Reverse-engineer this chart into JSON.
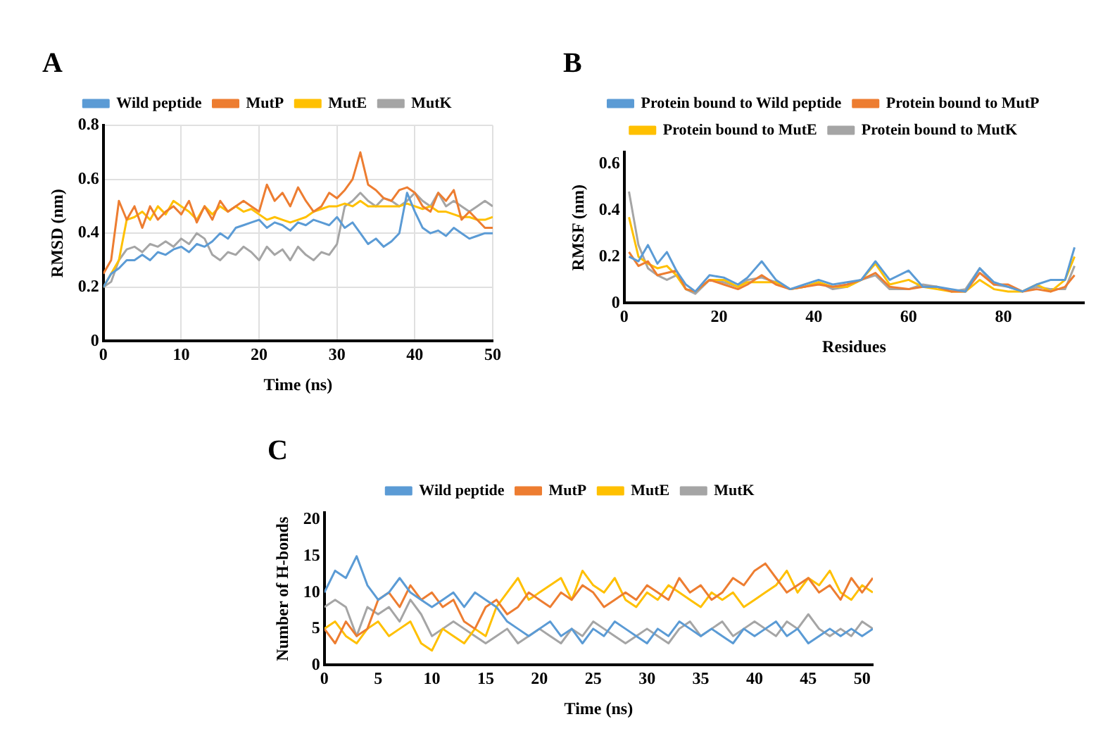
{
  "chart_data": [
    {
      "type": "line",
      "title": "A",
      "xlabel": "Time (ns)",
      "ylabel": "RMSD (nm)",
      "grid": true,
      "legend": "top",
      "marker": "none",
      "x": [
        0,
        1,
        2,
        3,
        4,
        5,
        6,
        7,
        8,
        9,
        10,
        11,
        12,
        13,
        14,
        15,
        16,
        17,
        18,
        19,
        20,
        21,
        22,
        23,
        24,
        25,
        26,
        27,
        28,
        29,
        30,
        31,
        32,
        33,
        34,
        35,
        36,
        37,
        38,
        39,
        40,
        41,
        42,
        43,
        44,
        45,
        46,
        47,
        48,
        49,
        50
      ],
      "xlim": [
        0,
        50
      ],
      "xticks": [
        0,
        10,
        20,
        30,
        40,
        50
      ],
      "ylim": [
        0,
        0.8
      ],
      "yticks": [
        0,
        0.2,
        0.4,
        0.6,
        0.8
      ],
      "series": [
        {
          "name": "Wild peptide",
          "color": "#5b9bd5",
          "values": [
            0.2,
            0.25,
            0.27,
            0.3,
            0.3,
            0.32,
            0.3,
            0.33,
            0.32,
            0.34,
            0.35,
            0.33,
            0.36,
            0.35,
            0.37,
            0.4,
            0.38,
            0.42,
            0.43,
            0.44,
            0.45,
            0.42,
            0.44,
            0.43,
            0.41,
            0.44,
            0.43,
            0.45,
            0.44,
            0.43,
            0.46,
            0.42,
            0.44,
            0.4,
            0.36,
            0.38,
            0.35,
            0.37,
            0.4,
            0.55,
            0.48,
            0.42,
            0.4,
            0.41,
            0.39,
            0.42,
            0.4,
            0.38,
            0.39,
            0.4,
            0.4
          ]
        },
        {
          "name": "MutP",
          "color": "#ed7d31",
          "values": [
            0.25,
            0.3,
            0.52,
            0.45,
            0.5,
            0.42,
            0.5,
            0.45,
            0.48,
            0.5,
            0.47,
            0.52,
            0.44,
            0.5,
            0.45,
            0.52,
            0.48,
            0.5,
            0.52,
            0.5,
            0.48,
            0.58,
            0.52,
            0.55,
            0.5,
            0.57,
            0.52,
            0.48,
            0.5,
            0.55,
            0.53,
            0.56,
            0.6,
            0.7,
            0.58,
            0.56,
            0.53,
            0.52,
            0.56,
            0.57,
            0.55,
            0.5,
            0.48,
            0.55,
            0.52,
            0.56,
            0.45,
            0.48,
            0.45,
            0.42,
            0.42
          ]
        },
        {
          "name": "MutE",
          "color": "#ffc000",
          "values": [
            0.2,
            0.25,
            0.3,
            0.45,
            0.46,
            0.48,
            0.45,
            0.5,
            0.47,
            0.52,
            0.5,
            0.48,
            0.45,
            0.5,
            0.47,
            0.5,
            0.48,
            0.5,
            0.48,
            0.49,
            0.47,
            0.45,
            0.46,
            0.45,
            0.44,
            0.45,
            0.46,
            0.48,
            0.49,
            0.5,
            0.5,
            0.51,
            0.5,
            0.52,
            0.5,
            0.5,
            0.5,
            0.5,
            0.5,
            0.51,
            0.5,
            0.49,
            0.5,
            0.48,
            0.48,
            0.47,
            0.46,
            0.46,
            0.45,
            0.45,
            0.46
          ]
        },
        {
          "name": "MutK",
          "color": "#a5a5a5",
          "values": [
            0.2,
            0.22,
            0.3,
            0.34,
            0.35,
            0.33,
            0.36,
            0.35,
            0.37,
            0.35,
            0.38,
            0.36,
            0.4,
            0.38,
            0.32,
            0.3,
            0.33,
            0.32,
            0.35,
            0.33,
            0.3,
            0.35,
            0.32,
            0.34,
            0.3,
            0.35,
            0.32,
            0.3,
            0.33,
            0.32,
            0.36,
            0.5,
            0.52,
            0.55,
            0.52,
            0.5,
            0.53,
            0.52,
            0.5,
            0.52,
            0.55,
            0.52,
            0.5,
            0.55,
            0.5,
            0.52,
            0.5,
            0.48,
            0.5,
            0.52,
            0.5
          ]
        }
      ]
    },
    {
      "type": "line",
      "title": "B",
      "xlabel": "Residues",
      "ylabel": "RMSF (nm)",
      "grid": false,
      "legend": "top",
      "marker": "none",
      "x": [
        1,
        3,
        5,
        7,
        9,
        11,
        13,
        15,
        18,
        21,
        24,
        26,
        29,
        32,
        35,
        38,
        41,
        44,
        47,
        50,
        53,
        56,
        60,
        63,
        66,
        69,
        72,
        75,
        78,
        81,
        84,
        87,
        90,
        93,
        95
      ],
      "xlim": [
        0,
        97
      ],
      "xticks": [
        0,
        20,
        40,
        60,
        80
      ],
      "ylim": [
        0,
        0.65
      ],
      "yticks": [
        0,
        0.2,
        0.4,
        0.6
      ],
      "series": [
        {
          "name": "Protein bound to Wild peptide",
          "color": "#5b9bd5",
          "values": [
            0.2,
            0.18,
            0.25,
            0.17,
            0.22,
            0.14,
            0.08,
            0.05,
            0.12,
            0.11,
            0.08,
            0.11,
            0.18,
            0.1,
            0.06,
            0.08,
            0.1,
            0.08,
            0.09,
            0.1,
            0.18,
            0.1,
            0.14,
            0.07,
            0.07,
            0.06,
            0.05,
            0.15,
            0.09,
            0.07,
            0.05,
            0.08,
            0.1,
            0.1,
            0.24
          ]
        },
        {
          "name": "Protein bound to MutP",
          "color": "#ed7d31",
          "values": [
            0.22,
            0.16,
            0.18,
            0.12,
            0.13,
            0.14,
            0.06,
            0.05,
            0.1,
            0.08,
            0.06,
            0.08,
            0.12,
            0.08,
            0.06,
            0.07,
            0.08,
            0.07,
            0.08,
            0.1,
            0.13,
            0.07,
            0.06,
            0.07,
            0.07,
            0.05,
            0.05,
            0.13,
            0.08,
            0.08,
            0.05,
            0.06,
            0.05,
            0.07,
            0.12
          ]
        },
        {
          "name": "Protein bound to MutE",
          "color": "#ffc000",
          "values": [
            0.37,
            0.2,
            0.17,
            0.15,
            0.16,
            0.12,
            0.06,
            0.05,
            0.1,
            0.1,
            0.07,
            0.09,
            0.09,
            0.09,
            0.06,
            0.07,
            0.09,
            0.07,
            0.07,
            0.1,
            0.17,
            0.08,
            0.1,
            0.07,
            0.06,
            0.05,
            0.05,
            0.1,
            0.06,
            0.05,
            0.05,
            0.08,
            0.05,
            0.1,
            0.2
          ]
        },
        {
          "name": "Protein bound to MutK",
          "color": "#a5a5a5",
          "values": [
            0.48,
            0.25,
            0.15,
            0.12,
            0.1,
            0.12,
            0.06,
            0.04,
            0.1,
            0.09,
            0.07,
            0.1,
            0.11,
            0.09,
            0.06,
            0.07,
            0.09,
            0.06,
            0.07,
            0.1,
            0.12,
            0.06,
            0.06,
            0.08,
            0.07,
            0.05,
            0.06,
            0.15,
            0.08,
            0.07,
            0.05,
            0.07,
            0.06,
            0.06,
            0.16
          ]
        }
      ]
    },
    {
      "type": "line",
      "title": "C",
      "xlabel": "Time (ns)",
      "ylabel": "Number of H-bonds",
      "grid": false,
      "legend": "top",
      "marker": "none",
      "x": [
        0,
        1,
        2,
        3,
        4,
        5,
        6,
        7,
        8,
        9,
        10,
        11,
        12,
        13,
        14,
        15,
        16,
        17,
        18,
        19,
        20,
        21,
        22,
        23,
        24,
        25,
        26,
        27,
        28,
        29,
        30,
        31,
        32,
        33,
        34,
        35,
        36,
        37,
        38,
        39,
        40,
        41,
        42,
        43,
        44,
        45,
        46,
        47,
        48,
        49,
        50,
        51
      ],
      "xlim": [
        0,
        51
      ],
      "xticks": [
        0,
        5,
        10,
        15,
        20,
        25,
        30,
        35,
        40,
        45,
        50
      ],
      "ylim": [
        0,
        21
      ],
      "yticks": [
        0,
        5,
        10,
        15,
        20
      ],
      "series": [
        {
          "name": "Wild peptide",
          "color": "#5b9bd5",
          "values": [
            10,
            13,
            12,
            15,
            11,
            9,
            10,
            12,
            10,
            9,
            8,
            9,
            10,
            8,
            10,
            9,
            8,
            6,
            5,
            4,
            5,
            6,
            4,
            5,
            3,
            5,
            4,
            6,
            5,
            4,
            3,
            5,
            4,
            6,
            5,
            4,
            5,
            4,
            3,
            5,
            4,
            5,
            6,
            4,
            5,
            3,
            4,
            5,
            4,
            5,
            4,
            5
          ]
        },
        {
          "name": "MutP",
          "color": "#ed7d31",
          "values": [
            5,
            3,
            6,
            4,
            5,
            9,
            10,
            8,
            11,
            9,
            10,
            8,
            9,
            6,
            5,
            8,
            9,
            7,
            8,
            10,
            9,
            8,
            10,
            9,
            11,
            10,
            8,
            9,
            10,
            9,
            11,
            10,
            9,
            12,
            10,
            11,
            9,
            10,
            12,
            11,
            13,
            14,
            12,
            10,
            11,
            12,
            10,
            11,
            9,
            12,
            10,
            12
          ]
        },
        {
          "name": "MutE",
          "color": "#ffc000",
          "values": [
            5,
            6,
            4,
            3,
            5,
            6,
            4,
            5,
            6,
            3,
            2,
            5,
            4,
            3,
            5,
            4,
            8,
            10,
            12,
            9,
            10,
            11,
            12,
            9,
            13,
            11,
            10,
            12,
            9,
            8,
            10,
            9,
            11,
            10,
            9,
            8,
            10,
            9,
            10,
            8,
            9,
            10,
            11,
            13,
            10,
            12,
            11,
            13,
            10,
            9,
            11,
            10
          ]
        },
        {
          "name": "MutK",
          "color": "#a5a5a5",
          "values": [
            8,
            9,
            8,
            4,
            8,
            7,
            8,
            6,
            9,
            7,
            4,
            5,
            6,
            5,
            4,
            3,
            4,
            5,
            3,
            4,
            5,
            4,
            3,
            5,
            4,
            6,
            5,
            4,
            3,
            4,
            5,
            4,
            3,
            5,
            6,
            4,
            5,
            6,
            4,
            5,
            6,
            5,
            4,
            6,
            5,
            7,
            5,
            4,
            5,
            4,
            6,
            5
          ]
        }
      ]
    }
  ]
}
